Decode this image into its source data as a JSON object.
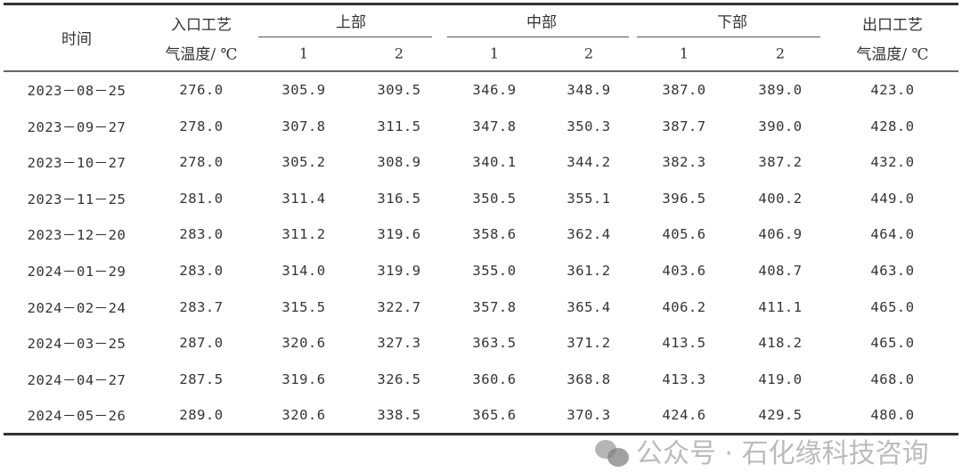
{
  "header": {
    "time": "时间",
    "inlet_line1": "入口工艺",
    "inlet_line2": "气温度/ ℃",
    "upper": "上部",
    "middle": "中部",
    "lower": "下部",
    "outlet_line1": "出口工艺",
    "outlet_line2": "气温度/ ℃",
    "sub": [
      "1",
      "2",
      "1",
      "2",
      "1",
      "2"
    ]
  },
  "rows": [
    [
      "2023－08－25",
      "276.0",
      "305.9",
      "309.5",
      "346.9",
      "348.9",
      "387.0",
      "389.0",
      "423.0"
    ],
    [
      "2023－09－27",
      "278.0",
      "307.8",
      "311.5",
      "347.8",
      "350.3",
      "387.7",
      "390.0",
      "428.0"
    ],
    [
      "2023－10－27",
      "278.0",
      "305.2",
      "308.9",
      "340.1",
      "344.2",
      "382.3",
      "387.2",
      "432.0"
    ],
    [
      "2023－11－25",
      "281.0",
      "311.4",
      "316.5",
      "350.5",
      "355.1",
      "396.5",
      "400.2",
      "449.0"
    ],
    [
      "2023－12－20",
      "283.0",
      "311.2",
      "319.6",
      "358.6",
      "362.4",
      "405.6",
      "406.9",
      "464.0"
    ],
    [
      "2024－01－29",
      "283.0",
      "314.0",
      "319.9",
      "355.0",
      "361.2",
      "403.6",
      "408.7",
      "463.0"
    ],
    [
      "2024－02－24",
      "283.7",
      "315.5",
      "322.7",
      "357.8",
      "365.4",
      "406.2",
      "411.1",
      "465.0"
    ],
    [
      "2024－03－25",
      "287.0",
      "320.6",
      "327.3",
      "363.5",
      "371.2",
      "413.5",
      "418.2",
      "465.0"
    ],
    [
      "2024－04－27",
      "287.5",
      "319.6",
      "326.5",
      "360.6",
      "368.8",
      "413.3",
      "419.0",
      "468.0"
    ],
    [
      "2024－05－26",
      "289.0",
      "320.6",
      "338.5",
      "365.6",
      "370.3",
      "424.6",
      "429.5",
      "480.0"
    ]
  ],
  "watermark": "公众号 · 石化缘科技咨询"
}
